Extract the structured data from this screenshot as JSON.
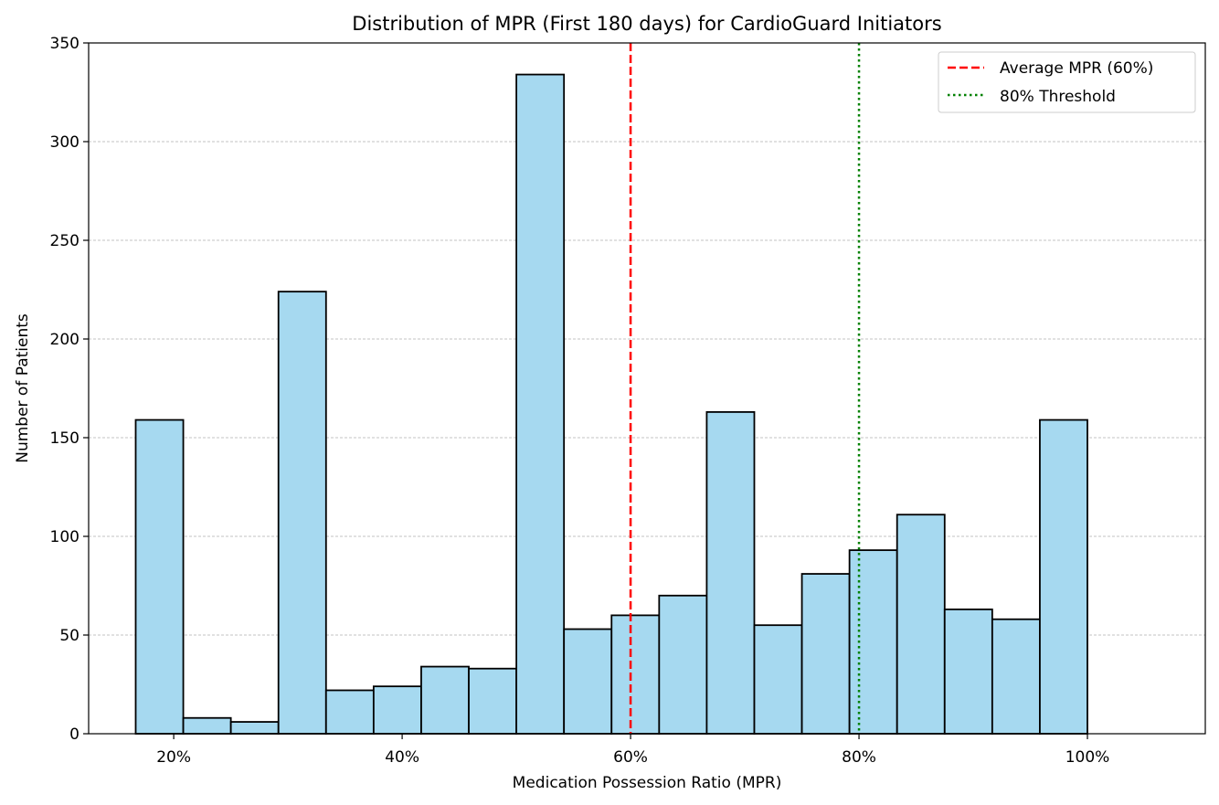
{
  "chart_data": {
    "type": "bar",
    "title": "Distribution of MPR (First 180 days) for CardioGuard Initiators",
    "xlabel": "Medication Possession Ratio (MPR)",
    "ylabel": "Number of Patients",
    "xlim": [
      0.1255,
      1.1032
    ],
    "ylim": [
      0,
      350
    ],
    "xticks": [
      {
        "value": 0.2,
        "label": "20%"
      },
      {
        "value": 0.4,
        "label": "40%"
      },
      {
        "value": 0.6,
        "label": "60%"
      },
      {
        "value": 0.8,
        "label": "80%"
      },
      {
        "value": 1.0,
        "label": "100%"
      }
    ],
    "yticks": [
      {
        "value": 0,
        "label": "0"
      },
      {
        "value": 50,
        "label": "50"
      },
      {
        "value": 100,
        "label": "100"
      },
      {
        "value": 150,
        "label": "150"
      },
      {
        "value": 200,
        "label": "200"
      },
      {
        "value": 250,
        "label": "250"
      },
      {
        "value": 300,
        "label": "300"
      },
      {
        "value": 350,
        "label": "350"
      }
    ],
    "bin_range": [
      0.1667,
      1.0
    ],
    "bin_count": 20,
    "values": [
      159,
      8,
      6,
      224,
      22,
      24,
      34,
      33,
      334,
      53,
      60,
      70,
      163,
      55,
      81,
      93,
      111,
      63,
      58,
      159
    ],
    "bar_color": "#a6d9f0",
    "grid": "y",
    "reference_lines": [
      {
        "value": 0.6,
        "label": "Average MPR (60%)",
        "color": "#ff0000",
        "style": "dashed"
      },
      {
        "value": 0.8,
        "label": "80% Threshold",
        "color": "#008000",
        "style": "dotted"
      }
    ],
    "legend_position": "top-right"
  }
}
